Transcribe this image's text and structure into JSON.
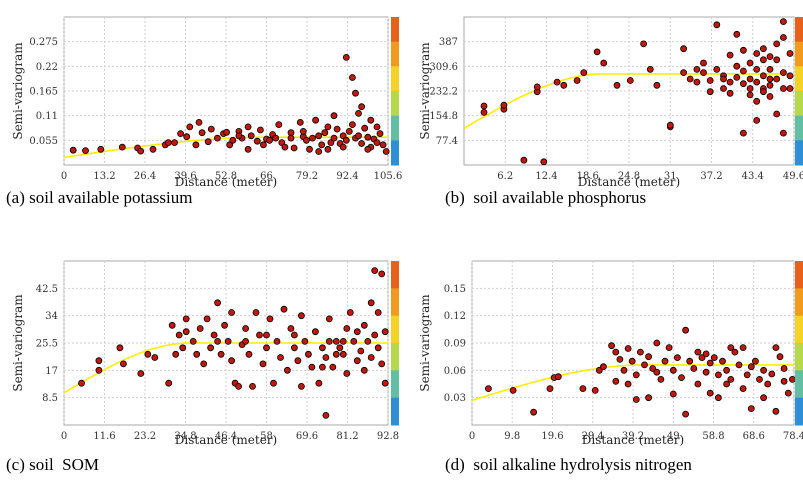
{
  "colors": {
    "point_fill": "#c0180c",
    "point_stroke": "#000000",
    "curve": "#ffee00",
    "grid": "#cfcfcf",
    "plot_border": "#aaaaaa",
    "legend_bar": [
      "#e8611a",
      "#f29a1c",
      "#f4d226",
      "#b5d94b",
      "#62bfa3",
      "#2f8fd6"
    ]
  },
  "chart_data": [
    {
      "type": "scatter",
      "caption": "(a) soil available potassium",
      "xlabel": "Distance (meter)",
      "ylabel": "Semi-variogram",
      "xticks": [
        0,
        13.2,
        26.4,
        39.6,
        52.8,
        66,
        79.2,
        92.4,
        105.6
      ],
      "xtick_labels": [
        "0",
        "13.2",
        "26.4",
        "39.6",
        "52.8",
        "66",
        "79.2",
        "92.4",
        "105.6"
      ],
      "yticks": [
        0.055,
        0.11,
        0.165,
        0.22,
        0.275
      ],
      "ytick_labels": [
        "0.055",
        "0.11",
        "0.165",
        "0.22",
        "0.275"
      ],
      "xlim": [
        0,
        105.6
      ],
      "ylim": [
        0,
        0.33
      ],
      "grid": true,
      "model_curve": {
        "nugget": 0.017,
        "sill": 0.062,
        "range": 66
      },
      "points": [
        [
          3,
          0.033
        ],
        [
          7,
          0.032
        ],
        [
          12,
          0.035
        ],
        [
          19,
          0.04
        ],
        [
          24,
          0.038
        ],
        [
          25,
          0.031
        ],
        [
          29,
          0.035
        ],
        [
          33,
          0.045
        ],
        [
          34,
          0.05
        ],
        [
          36,
          0.05
        ],
        [
          38,
          0.07
        ],
        [
          40,
          0.063
        ],
        [
          41,
          0.085
        ],
        [
          43,
          0.045
        ],
        [
          44,
          0.095
        ],
        [
          45,
          0.072
        ],
        [
          47,
          0.052
        ],
        [
          48,
          0.08
        ],
        [
          50,
          0.06
        ],
        [
          52,
          0.07
        ],
        [
          53,
          0.073
        ],
        [
          54,
          0.045
        ],
        [
          55,
          0.055
        ],
        [
          57,
          0.075
        ],
        [
          58,
          0.06
        ],
        [
          60,
          0.085
        ],
        [
          61,
          0.065
        ],
        [
          63,
          0.053
        ],
        [
          64,
          0.078
        ],
        [
          66,
          0.058
        ],
        [
          67,
          0.055
        ],
        [
          68,
          0.068
        ],
        [
          70,
          0.09
        ],
        [
          71,
          0.05
        ],
        [
          72,
          0.04
        ],
        [
          74,
          0.072
        ],
        [
          75,
          0.038
        ],
        [
          77,
          0.095
        ],
        [
          78,
          0.063
        ],
        [
          79,
          0.055
        ],
        [
          80,
          0.035
        ],
        [
          81,
          0.06
        ],
        [
          82,
          0.1
        ],
        [
          83,
          0.065
        ],
        [
          84,
          0.045
        ],
        [
          85,
          0.072
        ],
        [
          86,
          0.085
        ],
        [
          87,
          0.05
        ],
        [
          88,
          0.06
        ],
        [
          89,
          0.08
        ],
        [
          90,
          0.048
        ],
        [
          91,
          0.065
        ],
        [
          92,
          0.055
        ],
        [
          93,
          0.075
        ],
        [
          94,
          0.09
        ],
        [
          95,
          0.06
        ],
        [
          96,
          0.065
        ],
        [
          97,
          0.048
        ],
        [
          98,
          0.082
        ],
        [
          99,
          0.062
        ],
        [
          100,
          0.04
        ],
        [
          101,
          0.058
        ],
        [
          102,
          0.05
        ],
        [
          103,
          0.07
        ],
        [
          104,
          0.045
        ],
        [
          105,
          0.03
        ],
        [
          88,
          0.11
        ],
        [
          92,
          0.24
        ],
        [
          94,
          0.195
        ],
        [
          95,
          0.16
        ],
        [
          97,
          0.13
        ],
        [
          96,
          0.115
        ],
        [
          100,
          0.1
        ],
        [
          102,
          0.085
        ],
        [
          60,
          0.035
        ],
        [
          65,
          0.045
        ],
        [
          83,
          0.03
        ],
        [
          86,
          0.035
        ],
        [
          91,
          0.04
        ],
        [
          99,
          0.035
        ],
        [
          78,
          0.075
        ],
        [
          74,
          0.06
        ],
        [
          69,
          0.06
        ],
        [
          57,
          0.065
        ]
      ]
    },
    {
      "type": "scatter",
      "caption": "(b)  soil available phosphorus",
      "xlabel": "Distance (meter)",
      "ylabel": "Semi-variogram",
      "xticks": [
        6.2,
        12.4,
        18.6,
        24.8,
        31,
        37.2,
        43.4,
        49.6
      ],
      "xtick_labels": [
        "6.2",
        "12.4",
        "18.6",
        "24.8",
        "31",
        "37.2",
        "43.4",
        "49.6"
      ],
      "yticks": [
        77.4,
        154.8,
        232.2,
        309.6,
        387
      ],
      "ytick_labels": [
        "77.4",
        "154.8",
        "232.2",
        "309.6",
        "387"
      ],
      "xlim": [
        0,
        49.6
      ],
      "ylim": [
        0,
        464.4
      ],
      "grid": true,
      "model_curve": {
        "nugget": 115,
        "sill": 286,
        "range": 21
      },
      "points": [
        [
          3,
          165
        ],
        [
          3,
          185
        ],
        [
          6,
          175
        ],
        [
          6,
          188
        ],
        [
          9,
          15
        ],
        [
          11,
          230
        ],
        [
          11,
          245
        ],
        [
          12,
          10
        ],
        [
          14,
          260
        ],
        [
          15,
          250
        ],
        [
          17,
          265
        ],
        [
          18,
          290
        ],
        [
          20,
          355
        ],
        [
          21,
          320
        ],
        [
          23,
          250
        ],
        [
          25,
          265
        ],
        [
          27,
          380
        ],
        [
          28,
          300
        ],
        [
          29,
          250
        ],
        [
          31,
          120
        ],
        [
          31,
          125
        ],
        [
          33,
          365
        ],
        [
          33,
          290
        ],
        [
          34,
          270
        ],
        [
          35,
          260
        ],
        [
          36,
          320
        ],
        [
          36,
          290
        ],
        [
          37,
          265
        ],
        [
          37,
          230
        ],
        [
          38,
          440
        ],
        [
          38,
          300
        ],
        [
          39,
          280
        ],
        [
          39,
          240
        ],
        [
          40,
          345
        ],
        [
          40,
          260
        ],
        [
          40,
          225
        ],
        [
          41,
          410
        ],
        [
          41,
          310
        ],
        [
          41,
          275
        ],
        [
          42,
          360
        ],
        [
          42,
          295
        ],
        [
          42,
          255
        ],
        [
          43,
          320
        ],
        [
          43,
          270
        ],
        [
          43,
          220
        ],
        [
          44,
          350
        ],
        [
          44,
          300
        ],
        [
          44,
          260
        ],
        [
          44,
          200
        ],
        [
          45,
          365
        ],
        [
          45,
          330
        ],
        [
          45,
          280
        ],
        [
          45,
          240
        ],
        [
          46,
          340
        ],
        [
          46,
          300
        ],
        [
          46,
          250
        ],
        [
          46,
          215
        ],
        [
          47,
          380
        ],
        [
          47,
          330
        ],
        [
          47,
          270
        ],
        [
          47,
          160
        ],
        [
          48,
          450
        ],
        [
          48,
          400
        ],
        [
          48,
          290
        ],
        [
          48,
          240
        ],
        [
          48,
          100
        ],
        [
          49,
          350
        ],
        [
          49,
          280
        ],
        [
          49,
          240
        ],
        [
          42,
          100
        ],
        [
          44,
          140
        ],
        [
          35,
          300
        ],
        [
          39,
          270
        ],
        [
          43,
          240
        ],
        [
          45,
          230
        ],
        [
          46,
          270
        ]
      ]
    },
    {
      "type": "scatter",
      "caption": "(c) soil  SOM",
      "xlabel": "Distance (meter)",
      "ylabel": "Semi-variogram",
      "xticks": [
        0,
        11.6,
        23.2,
        34.8,
        46.4,
        58,
        69.6,
        81.2,
        92.8
      ],
      "xtick_labels": [
        "0",
        "11.6",
        "23.2",
        "34.8",
        "46.4",
        "58",
        "69.6",
        "81.2",
        "92.8"
      ],
      "yticks": [
        8.5,
        17,
        25.5,
        34,
        42.5
      ],
      "ytick_labels": [
        "8.5",
        "17",
        "25.5",
        "34",
        "42.5"
      ],
      "xlim": [
        0,
        92.8
      ],
      "ylim": [
        0,
        51
      ],
      "grid": true,
      "model_curve": {
        "nugget": 10,
        "sill": 25.5,
        "range": 36
      },
      "points": [
        [
          5,
          13
        ],
        [
          10,
          17
        ],
        [
          10,
          20
        ],
        [
          16,
          24
        ],
        [
          17,
          19
        ],
        [
          22,
          16
        ],
        [
          24,
          22
        ],
        [
          26,
          21
        ],
        [
          30,
          13
        ],
        [
          31,
          31
        ],
        [
          32,
          22
        ],
        [
          33,
          28
        ],
        [
          34,
          24
        ],
        [
          35,
          33
        ],
        [
          35,
          29
        ],
        [
          37,
          26
        ],
        [
          38,
          22
        ],
        [
          39,
          30
        ],
        [
          40,
          19
        ],
        [
          41,
          33
        ],
        [
          42,
          24
        ],
        [
          43,
          28
        ],
        [
          44,
          38
        ],
        [
          45,
          22
        ],
        [
          46,
          31
        ],
        [
          47,
          26
        ],
        [
          48,
          20
        ],
        [
          48,
          35
        ],
        [
          49,
          13
        ],
        [
          50,
          12
        ],
        [
          51,
          25
        ],
        [
          52,
          30
        ],
        [
          53,
          22
        ],
        [
          54,
          12
        ],
        [
          55,
          35
        ],
        [
          56,
          28
        ],
        [
          57,
          19
        ],
        [
          58,
          24
        ],
        [
          59,
          33
        ],
        [
          60,
          13
        ],
        [
          61,
          26
        ],
        [
          62,
          21
        ],
        [
          63,
          36
        ],
        [
          64,
          17
        ],
        [
          65,
          30
        ],
        [
          66,
          24
        ],
        [
          67,
          20
        ],
        [
          68,
          34
        ],
        [
          68,
          12
        ],
        [
          69,
          26
        ],
        [
          70,
          22
        ],
        [
          71,
          18
        ],
        [
          72,
          29
        ],
        [
          73,
          13
        ],
        [
          74,
          24
        ],
        [
          75,
          3
        ],
        [
          75,
          21
        ],
        [
          76,
          33
        ],
        [
          77,
          18
        ],
        [
          78,
          26
        ],
        [
          79,
          24
        ],
        [
          80,
          22
        ],
        [
          81,
          30
        ],
        [
          81,
          16
        ],
        [
          82,
          35
        ],
        [
          83,
          26
        ],
        [
          84,
          20
        ],
        [
          84,
          29
        ],
        [
          85,
          23
        ],
        [
          86,
          31
        ],
        [
          86,
          17
        ],
        [
          87,
          26
        ],
        [
          88,
          21
        ],
        [
          88,
          38
        ],
        [
          89,
          28
        ],
        [
          89,
          48
        ],
        [
          90,
          24
        ],
        [
          90,
          35
        ],
        [
          91,
          47
        ],
        [
          91,
          19
        ],
        [
          92,
          29
        ],
        [
          92,
          13
        ],
        [
          80,
          26
        ],
        [
          78,
          22
        ],
        [
          76,
          26
        ],
        [
          74,
          18
        ],
        [
          66,
          28
        ],
        [
          58,
          28
        ],
        [
          52,
          26
        ],
        [
          44,
          26
        ]
      ]
    },
    {
      "type": "scatter",
      "caption": "(d)  soil alkaline hydrolysis nitrogen",
      "xlabel": "Distance (meter)",
      "ylabel": "Semi-variogram",
      "xticks": [
        0,
        9.8,
        19.6,
        29.4,
        39.2,
        49,
        58.8,
        68.6,
        78.4
      ],
      "xtick_labels": [
        "0",
        "9.8",
        "19.6",
        "29.4",
        "39.2",
        "49",
        "58.8",
        "68.6",
        "78.4"
      ],
      "yticks": [
        0.03,
        0.06,
        0.09,
        0.12,
        0.15
      ],
      "ytick_labels": [
        "0.03",
        "0.06",
        "0.09",
        "0.12",
        "0.15"
      ],
      "xlim": [
        0,
        78.4
      ],
      "ylim": [
        0,
        0.18
      ],
      "grid": true,
      "model_curve": {
        "nugget": 0.027,
        "sill": 0.066,
        "range": 42
      },
      "points": [
        [
          4,
          0.04
        ],
        [
          10,
          0.038
        ],
        [
          15,
          0.014
        ],
        [
          19,
          0.04
        ],
        [
          20,
          0.052
        ],
        [
          21,
          0.053
        ],
        [
          27,
          0.04
        ],
        [
          30,
          0.038
        ],
        [
          31,
          0.06
        ],
        [
          32,
          0.064
        ],
        [
          34,
          0.087
        ],
        [
          35,
          0.048
        ],
        [
          35,
          0.08
        ],
        [
          36,
          0.072
        ],
        [
          37,
          0.06
        ],
        [
          38,
          0.084
        ],
        [
          38,
          0.045
        ],
        [
          39,
          0.07
        ],
        [
          40,
          0.055
        ],
        [
          41,
          0.08
        ],
        [
          42,
          0.066
        ],
        [
          43,
          0.075
        ],
        [
          43,
          0.03
        ],
        [
          44,
          0.062
        ],
        [
          45,
          0.09
        ],
        [
          46,
          0.05
        ],
        [
          47,
          0.07
        ],
        [
          48,
          0.085
        ],
        [
          49,
          0.034
        ],
        [
          49,
          0.06
        ],
        [
          50,
          0.074
        ],
        [
          51,
          0.052
        ],
        [
          52,
          0.104
        ],
        [
          52,
          0.012
        ],
        [
          53,
          0.07
        ],
        [
          54,
          0.062
        ],
        [
          55,
          0.045
        ],
        [
          55,
          0.08
        ],
        [
          56,
          0.074
        ],
        [
          57,
          0.058
        ],
        [
          58,
          0.068
        ],
        [
          58,
          0.035
        ],
        [
          59,
          0.074
        ],
        [
          60,
          0.055
        ],
        [
          60,
          0.03
        ],
        [
          61,
          0.07
        ],
        [
          62,
          0.06
        ],
        [
          62,
          0.045
        ],
        [
          63,
          0.05
        ],
        [
          64,
          0.08
        ],
        [
          65,
          0.066
        ],
        [
          66,
          0.085
        ],
        [
          66,
          0.04
        ],
        [
          67,
          0.055
        ],
        [
          68,
          0.064
        ],
        [
          68,
          0.018
        ],
        [
          69,
          0.07
        ],
        [
          70,
          0.05
        ],
        [
          71,
          0.06
        ],
        [
          71,
          0.03
        ],
        [
          72,
          0.045
        ],
        [
          73,
          0.056
        ],
        [
          74,
          0.085
        ],
        [
          74,
          0.015
        ],
        [
          75,
          0.075
        ],
        [
          76,
          0.062
        ],
        [
          76,
          0.048
        ],
        [
          77,
          0.035
        ],
        [
          78,
          0.05
        ],
        [
          63,
          0.085
        ],
        [
          57,
          0.078
        ],
        [
          45,
          0.058
        ],
        [
          40,
          0.028
        ]
      ]
    }
  ]
}
